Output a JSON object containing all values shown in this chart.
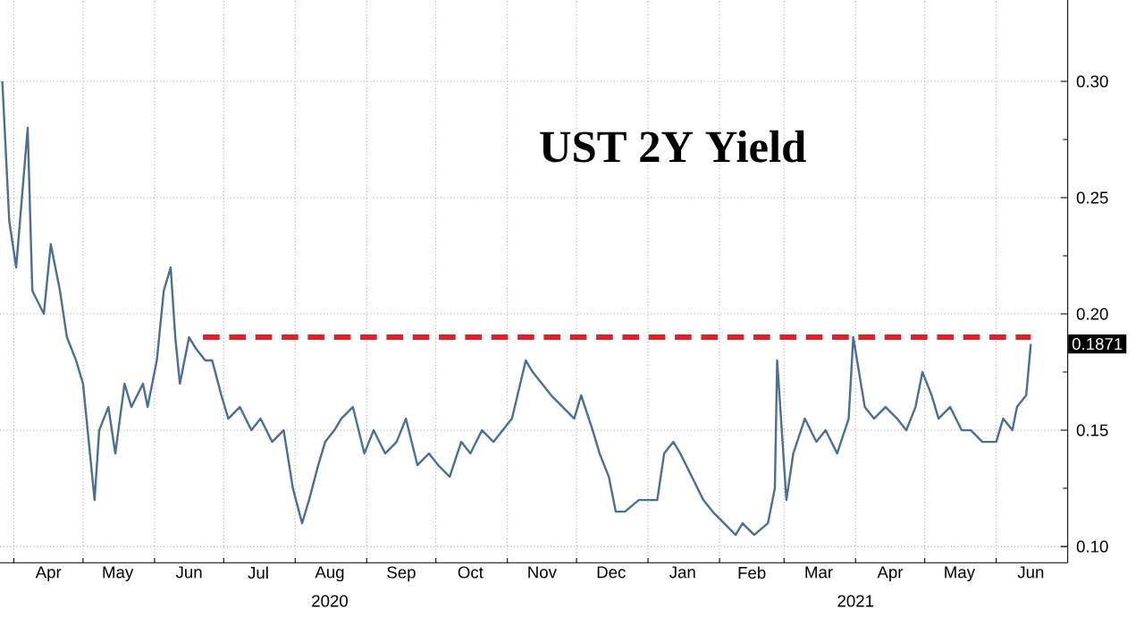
{
  "chart_data": {
    "type": "line",
    "title": "UST 2Y Yield",
    "x": [
      "2020-03-27",
      "2020-03-30",
      "2020-04-02",
      "2020-04-07",
      "2020-04-09",
      "2020-04-14",
      "2020-04-17",
      "2020-04-21",
      "2020-04-24",
      "2020-04-28",
      "2020-05-01",
      "2020-05-04",
      "2020-05-06",
      "2020-05-08",
      "2020-05-12",
      "2020-05-15",
      "2020-05-19",
      "2020-05-22",
      "2020-05-27",
      "2020-05-29",
      "2020-06-02",
      "2020-06-05",
      "2020-06-08",
      "2020-06-10",
      "2020-06-12",
      "2020-06-16",
      "2020-06-19",
      "2020-06-23",
      "2020-06-26",
      "2020-06-30",
      "2020-07-03",
      "2020-07-08",
      "2020-07-13",
      "2020-07-17",
      "2020-07-22",
      "2020-07-27",
      "2020-07-31",
      "2020-08-04",
      "2020-08-07",
      "2020-08-11",
      "2020-08-14",
      "2020-08-18",
      "2020-08-21",
      "2020-08-26",
      "2020-08-31",
      "2020-09-04",
      "2020-09-09",
      "2020-09-14",
      "2020-09-18",
      "2020-09-23",
      "2020-09-28",
      "2020-10-02",
      "2020-10-07",
      "2020-10-12",
      "2020-10-16",
      "2020-10-21",
      "2020-10-26",
      "2020-10-30",
      "2020-11-03",
      "2020-11-09",
      "2020-11-12",
      "2020-11-16",
      "2020-11-20",
      "2020-11-25",
      "2020-11-30",
      "2020-12-03",
      "2020-12-08",
      "2020-12-11",
      "2020-12-15",
      "2020-12-18",
      "2020-12-22",
      "2020-12-28",
      "2020-12-31",
      "2021-01-05",
      "2021-01-08",
      "2021-01-12",
      "2021-01-15",
      "2021-01-20",
      "2021-01-25",
      "2021-01-29",
      "2021-02-03",
      "2021-02-08",
      "2021-02-11",
      "2021-02-16",
      "2021-02-22",
      "2021-02-25",
      "2021-02-26",
      "2021-03-02",
      "2021-03-05",
      "2021-03-10",
      "2021-03-15",
      "2021-03-19",
      "2021-03-24",
      "2021-03-29",
      "2021-03-31",
      "2021-04-05",
      "2021-04-09",
      "2021-04-14",
      "2021-04-19",
      "2021-04-23",
      "2021-04-27",
      "2021-04-30",
      "2021-05-04",
      "2021-05-07",
      "2021-05-12",
      "2021-05-17",
      "2021-05-21",
      "2021-05-26",
      "2021-06-01",
      "2021-06-04",
      "2021-06-08",
      "2021-06-10",
      "2021-06-14",
      "2021-06-16"
    ],
    "series": [
      {
        "color": "#4a6f92",
        "values": [
          0.3,
          0.24,
          0.22,
          0.28,
          0.21,
          0.2,
          0.23,
          0.21,
          0.19,
          0.18,
          0.17,
          0.14,
          0.12,
          0.15,
          0.16,
          0.14,
          0.17,
          0.16,
          0.17,
          0.16,
          0.18,
          0.21,
          0.22,
          0.19,
          0.17,
          0.19,
          0.185,
          0.18,
          0.18,
          0.165,
          0.155,
          0.16,
          0.15,
          0.155,
          0.145,
          0.15,
          0.125,
          0.11,
          0.12,
          0.135,
          0.145,
          0.15,
          0.155,
          0.16,
          0.14,
          0.15,
          0.14,
          0.145,
          0.155,
          0.135,
          0.14,
          0.135,
          0.13,
          0.145,
          0.14,
          0.15,
          0.145,
          0.15,
          0.155,
          0.18,
          0.175,
          0.17,
          0.165,
          0.16,
          0.155,
          0.165,
          0.15,
          0.14,
          0.13,
          0.115,
          0.115,
          0.12,
          0.12,
          0.12,
          0.14,
          0.145,
          0.14,
          0.13,
          0.12,
          0.115,
          0.11,
          0.105,
          0.11,
          0.105,
          0.11,
          0.125,
          0.18,
          0.12,
          0.14,
          0.155,
          0.145,
          0.15,
          0.14,
          0.155,
          0.19,
          0.16,
          0.155,
          0.16,
          0.155,
          0.15,
          0.16,
          0.175,
          0.165,
          0.155,
          0.16,
          0.15,
          0.15,
          0.145,
          0.145,
          0.155,
          0.15,
          0.16,
          0.165,
          0.1871
        ]
      }
    ],
    "xlim": [
      "2020-03-26",
      "2021-07-02"
    ],
    "xticks": [
      {
        "value": "2020-04-16",
        "label": "Apr"
      },
      {
        "value": "2020-05-16",
        "label": "May"
      },
      {
        "value": "2020-06-16",
        "label": "Jun"
      },
      {
        "value": "2020-07-16",
        "label": "Jul"
      },
      {
        "value": "2020-08-16",
        "label": "Aug"
      },
      {
        "value": "2020-09-16",
        "label": "Sep"
      },
      {
        "value": "2020-10-16",
        "label": "Oct"
      },
      {
        "value": "2020-11-16",
        "label": "Nov"
      },
      {
        "value": "2020-12-16",
        "label": "Dec"
      },
      {
        "value": "2021-01-16",
        "label": "Jan"
      },
      {
        "value": "2021-02-15",
        "label": "Feb"
      },
      {
        "value": "2021-03-16",
        "label": "Mar"
      },
      {
        "value": "2021-04-16",
        "label": "Apr"
      },
      {
        "value": "2021-05-16",
        "label": "May"
      },
      {
        "value": "2021-06-16",
        "label": "Jun"
      }
    ],
    "ylim": [
      0.093,
      0.335
    ],
    "yticks": [
      {
        "value": 0.1,
        "label": "0.10"
      },
      {
        "value": 0.15,
        "label": "0.15"
      },
      {
        "value": 0.2,
        "label": "0.20"
      },
      {
        "value": 0.25,
        "label": "0.25"
      },
      {
        "value": 0.3,
        "label": "0.30"
      }
    ],
    "ref_lines": [
      {
        "axis": "y",
        "value": 0.19,
        "color": "#e0202a",
        "line_style": "dashed"
      }
    ],
    "annotations": [
      "2020",
      "2021",
      {
        "text": "0.1871",
        "x": "2021-06-16",
        "y": 0.1871
      }
    ],
    "grid": true,
    "marker": "none",
    "line_style": "solid"
  }
}
